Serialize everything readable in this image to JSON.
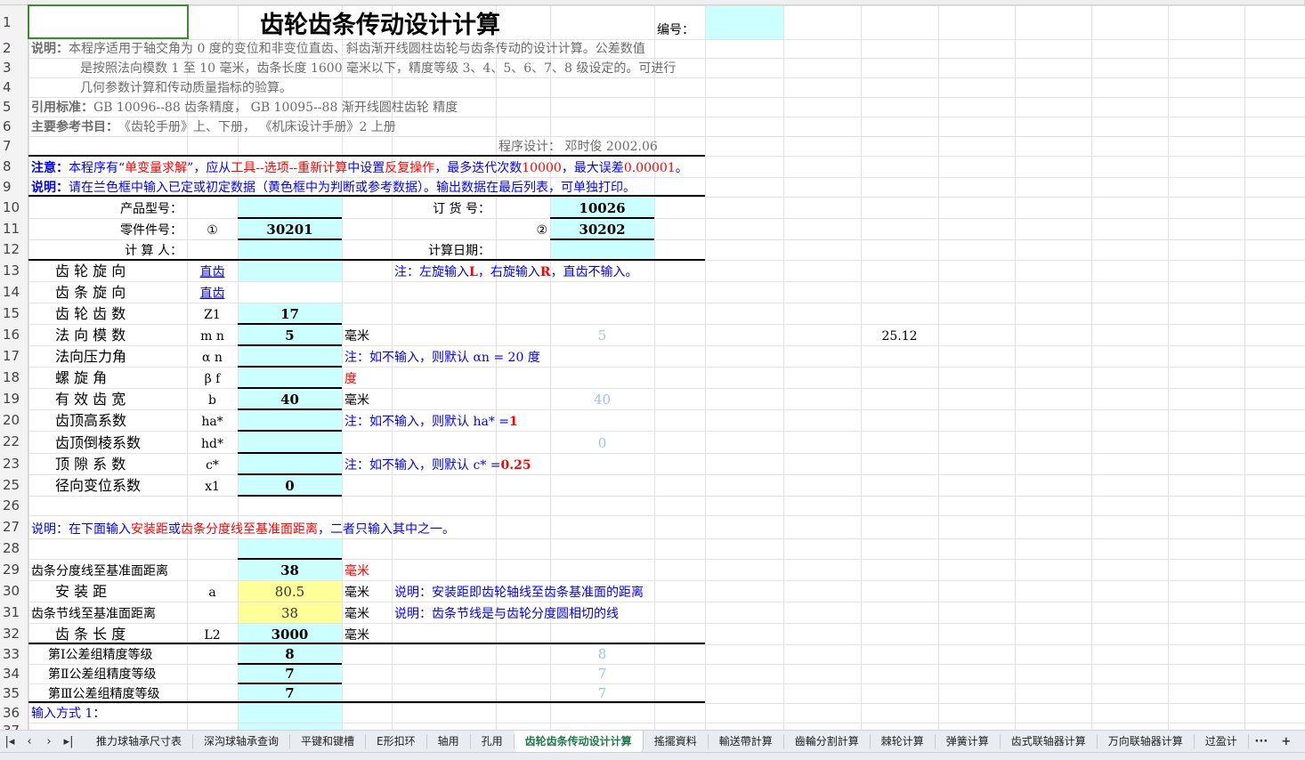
{
  "title": "齿轮齿条传动设计计算",
  "colors": {
    "input_fill": "#ccffff",
    "ref_fill": "#ffff99",
    "blue": "#0000ff",
    "red": "#ff0000",
    "gray": "#6b6b6b",
    "light_blue": "#9cc3f0",
    "active_tab": "#1e7a4c"
  },
  "rows": [
    {
      "n": "1",
      "cells": [
        {
          "c": "C",
          "t": "齿轮齿条传动设计计算",
          "s": "title"
        },
        {
          "c": "H",
          "t": "编号：",
          "s": "plain"
        }
      ]
    },
    {
      "n": "2",
      "cells": [
        {
          "c": "A",
          "runs": [
            {
              "t": "说明：",
              "s": "grayb"
            },
            {
              "t": "本程序适用于轴交角为  0 度的变位和非变位直齿、斜齿渐开线圆柱齿轮与齿条传动的设计计算。公差数值",
              "s": "gray"
            }
          ]
        }
      ]
    },
    {
      "n": "3",
      "cells": [
        {
          "c": "A",
          "t": "是按照法向模数  1 至 10 毫米，齿条长度 1600 毫米以下，精度等级  3、4、5、6、7、8  级设定的。可进行",
          "s": "gray indent"
        }
      ]
    },
    {
      "n": "4",
      "cells": [
        {
          "c": "A",
          "t": "几何参数计算和传动质量指标的验算。",
          "s": "gray indent"
        }
      ]
    },
    {
      "n": "5",
      "cells": [
        {
          "c": "A",
          "runs": [
            {
              "t": "引用标准：",
              "s": "grayb"
            },
            {
              "t": "GB 10096--88  齿条精度，  GB 10095--88  渐开线圆柱齿轮  精度",
              "s": "gray"
            }
          ]
        }
      ]
    },
    {
      "n": "6",
      "cells": [
        {
          "c": "A",
          "runs": [
            {
              "t": "主要参考书目：",
              "s": "grayb"
            },
            {
              "t": "《齿轮手册》上、下册，   《机床设计手册》2  上册",
              "s": "gray"
            }
          ]
        }
      ]
    },
    {
      "n": "7",
      "cells": [
        {
          "c": "F",
          "t": "程序设计：  邓时俊  2002.06",
          "s": "gray"
        }
      ]
    },
    {
      "n": "8",
      "cells": [
        {
          "c": "A",
          "runs": [
            {
              "t": "注意：",
              "s": "blueb"
            },
            {
              "t": "本程序有“",
              "s": "blue"
            },
            {
              "t": "单变量求解",
              "s": "red"
            },
            {
              "t": "”，应从",
              "s": "blue"
            },
            {
              "t": "工具--选项--重新计算",
              "s": "red"
            },
            {
              "t": "中设置",
              "s": "blue"
            },
            {
              "t": "反复操作",
              "s": "red"
            },
            {
              "t": "，最多迭代次数",
              "s": "blue"
            },
            {
              "t": "10000",
              "s": "red"
            },
            {
              "t": "，最大误差",
              "s": "blue"
            },
            {
              "t": "0.00001",
              "s": "red"
            },
            {
              "t": "。",
              "s": "blue"
            }
          ]
        }
      ]
    },
    {
      "n": "9",
      "cells": [
        {
          "c": "A",
          "runs": [
            {
              "t": "说明：",
              "s": "blueb"
            },
            {
              "t": "请在兰色框中输入已定或初定数据（黄色框中为判断或参考数据）。输出数据在最后列表，可单独打印。",
              "s": "blue"
            }
          ]
        }
      ]
    },
    {
      "n": "10",
      "cells": [
        {
          "c": "A",
          "t": "产品型号：",
          "s": "plain right"
        },
        {
          "c": "E",
          "t": "订  货  号：",
          "s": "plain rightF"
        },
        {
          "c": "G",
          "t": "10026",
          "s": "val"
        }
      ]
    },
    {
      "n": "11",
      "cells": [
        {
          "c": "A",
          "t": "零件件号：",
          "s": "plain right"
        },
        {
          "c": "B",
          "t": "①",
          "s": "plain center"
        },
        {
          "c": "C",
          "t": "30201",
          "s": "val"
        },
        {
          "c": "F",
          "t": "②",
          "s": "plain rightin"
        },
        {
          "c": "G",
          "t": "30202",
          "s": "val"
        }
      ]
    },
    {
      "n": "12",
      "cells": [
        {
          "c": "A",
          "t": "计 算  人：",
          "s": "plain right"
        },
        {
          "c": "E",
          "t": "计算日期：",
          "s": "plain rightF"
        }
      ]
    },
    {
      "n": "13",
      "cells": [
        {
          "c": "A",
          "t": "齿  轮  旋  向",
          "s": "label"
        },
        {
          "c": "B",
          "t": "直齿",
          "s": "link center"
        },
        {
          "c": "E",
          "runs": [
            {
              "t": "注：左旋输入 ",
              "s": "blue"
            },
            {
              "t": "L",
              "s": "redb"
            },
            {
              "t": "，右旋输入 ",
              "s": "blue"
            },
            {
              "t": "R",
              "s": "redb"
            },
            {
              "t": "，直齿不输入。",
              "s": "blue"
            }
          ]
        }
      ]
    },
    {
      "n": "14",
      "cells": [
        {
          "c": "A",
          "t": "齿  条  旋  向",
          "s": "label"
        },
        {
          "c": "B",
          "t": "直齿",
          "s": "link center"
        }
      ]
    },
    {
      "n": "15",
      "cells": [
        {
          "c": "A",
          "t": "齿  轮  齿  数",
          "s": "label"
        },
        {
          "c": "B",
          "t": "Z1",
          "s": "plain center"
        },
        {
          "c": "C",
          "t": "17",
          "s": "val"
        }
      ]
    },
    {
      "n": "16",
      "cells": [
        {
          "c": "A",
          "t": "法  向  模  数",
          "s": "label"
        },
        {
          "c": "B",
          "t": "m n",
          "s": "plain center"
        },
        {
          "c": "C",
          "t": "5",
          "s": "val"
        },
        {
          "c": "D",
          "t": "毫米",
          "s": "plain"
        },
        {
          "c": "G",
          "t": "5",
          "s": "lb"
        },
        {
          "c": "K",
          "t": "25.12",
          "s": "plain right2"
        }
      ]
    },
    {
      "n": "17",
      "cells": [
        {
          "c": "A",
          "t": "法向压力角",
          "s": "label"
        },
        {
          "c": "B",
          "t": "α n",
          "s": "plain center"
        },
        {
          "c": "D",
          "t": "注：如不输入，则默认  αn = 20  度",
          "s": "blue"
        }
      ]
    },
    {
      "n": "18",
      "cells": [
        {
          "c": "A",
          "t": "螺     旋       角",
          "s": "label"
        },
        {
          "c": "B",
          "t": "β f",
          "s": "plain center"
        },
        {
          "c": "D",
          "t": "度",
          "s": "red"
        }
      ]
    },
    {
      "n": "19",
      "cells": [
        {
          "c": "A",
          "t": "有  效  齿  宽",
          "s": "label"
        },
        {
          "c": "B",
          "t": "b",
          "s": "plain center"
        },
        {
          "c": "C",
          "t": "40",
          "s": "val"
        },
        {
          "c": "D",
          "t": "毫米",
          "s": "plain"
        },
        {
          "c": "G",
          "t": "40",
          "s": "lb"
        }
      ]
    },
    {
      "n": "20",
      "cells": [
        {
          "c": "A",
          "t": "齿顶高系数",
          "s": "label"
        },
        {
          "c": "B",
          "t": "ha*",
          "s": "plain center"
        },
        {
          "c": "D",
          "runs": [
            {
              "t": "注：如不输入，则默认  ha* = ",
              "s": "blue"
            },
            {
              "t": "1",
              "s": "redb"
            }
          ]
        }
      ]
    },
    {
      "n": "22",
      "cells": [
        {
          "c": "A",
          "t": "齿顶倒棱系数",
          "s": "label"
        },
        {
          "c": "B",
          "t": "hd*",
          "s": "plain center"
        },
        {
          "c": "G",
          "t": "0",
          "s": "lb"
        }
      ]
    },
    {
      "n": "23",
      "cells": [
        {
          "c": "A",
          "t": "顶  隙  系  数",
          "s": "label"
        },
        {
          "c": "B",
          "t": "c*",
          "s": "plain center"
        },
        {
          "c": "D",
          "runs": [
            {
              "t": "注：如不输入，则默认  c* = ",
              "s": "blue"
            },
            {
              "t": "0.25",
              "s": "redb"
            }
          ]
        }
      ]
    },
    {
      "n": "25",
      "cells": [
        {
          "c": "A",
          "t": "径向变位系数",
          "s": "label"
        },
        {
          "c": "B",
          "t": "x1",
          "s": "plain center"
        },
        {
          "c": "C",
          "t": "0",
          "s": "val"
        }
      ]
    },
    {
      "n": "26",
      "cells": []
    },
    {
      "n": "27",
      "cells": [
        {
          "c": "A",
          "runs": [
            {
              "t": "说明：在下面输入",
              "s": "blue"
            },
            {
              "t": "安装距",
              "s": "red"
            },
            {
              "t": "或",
              "s": "blue"
            },
            {
              "t": "齿条分度线至基准面距离",
              "s": "red"
            },
            {
              "t": "，二者只输入其中之一。",
              "s": "blue"
            }
          ]
        }
      ]
    },
    {
      "n": "28",
      "cells": []
    },
    {
      "n": "29",
      "cells": [
        {
          "c": "A",
          "t": "齿条分度线至基准面距离",
          "s": "plain"
        },
        {
          "c": "C",
          "t": "38",
          "s": "val"
        },
        {
          "c": "D",
          "t": "毫米",
          "s": "red"
        }
      ]
    },
    {
      "n": "30",
      "cells": [
        {
          "c": "A",
          "t": "安      装      距",
          "s": "label"
        },
        {
          "c": "B",
          "t": "a",
          "s": "plain center"
        },
        {
          "c": "C",
          "t": "80.5",
          "s": "valn"
        },
        {
          "c": "D",
          "t": "毫米",
          "s": "plain"
        },
        {
          "c": "E",
          "t": "说明：安装距即齿轮轴线至齿条基准面的距离",
          "s": "blue"
        }
      ]
    },
    {
      "n": "31",
      "cells": [
        {
          "c": "A",
          "t": "齿条节线至基准面距离",
          "s": "plain"
        },
        {
          "c": "C",
          "t": "38",
          "s": "valn"
        },
        {
          "c": "D",
          "t": "毫米",
          "s": "plain"
        },
        {
          "c": "E",
          "t": "说明：齿条节线是与齿轮分度圆相切的线",
          "s": "blue"
        }
      ]
    },
    {
      "n": "32",
      "cells": [
        {
          "c": "A",
          "t": "齿  条  长  度",
          "s": "label"
        },
        {
          "c": "B",
          "t": "L2",
          "s": "plain center"
        },
        {
          "c": "C",
          "t": "3000",
          "s": "val"
        },
        {
          "c": "D",
          "t": "毫米",
          "s": "plain"
        }
      ]
    },
    {
      "n": "33",
      "cells": [
        {
          "c": "A",
          "t": "第Ⅰ公差组精度等级",
          "s": "plain ind2"
        },
        {
          "c": "C",
          "t": "8",
          "s": "val"
        },
        {
          "c": "G",
          "t": "8",
          "s": "lb"
        }
      ]
    },
    {
      "n": "34",
      "cells": [
        {
          "c": "A",
          "t": "第Ⅱ公差组精度等级",
          "s": "plain ind2"
        },
        {
          "c": "C",
          "t": "7",
          "s": "val"
        },
        {
          "c": "G",
          "t": "7",
          "s": "lb"
        }
      ]
    },
    {
      "n": "35",
      "cells": [
        {
          "c": "A",
          "t": "第Ⅲ公差组精度等级",
          "s": "plain ind2"
        },
        {
          "c": "C",
          "t": "7",
          "s": "val"
        },
        {
          "c": "G",
          "t": "7",
          "s": "lb"
        }
      ]
    },
    {
      "n": "36",
      "cells": [
        {
          "c": "A",
          "t": "输入方式 1：",
          "s": "blue"
        }
      ]
    },
    {
      "n": "37",
      "cells": []
    }
  ],
  "tabs": {
    "nav_icons": [
      "first-sheet-icon",
      "prev-sheet-icon",
      "next-sheet-icon",
      "last-sheet-icon"
    ],
    "nav_glyphs": [
      "|◂",
      "‹",
      "›",
      "▸|"
    ],
    "items": [
      "推力球轴承尺寸表",
      "深沟球轴承查询",
      "平键和键槽",
      "E形扣环",
      "轴用",
      "孔用",
      "齿轮齿条传动设计计算",
      "搖擺資料",
      "輸送帶計算",
      "齒輪分割計算",
      "棘轮计算",
      "弹簧计算",
      "齿式联轴器计算",
      "万向联轴器计算",
      "过盈计"
    ],
    "active": "齿轮齿条传动设计计算",
    "more": "···",
    "add": "+"
  }
}
